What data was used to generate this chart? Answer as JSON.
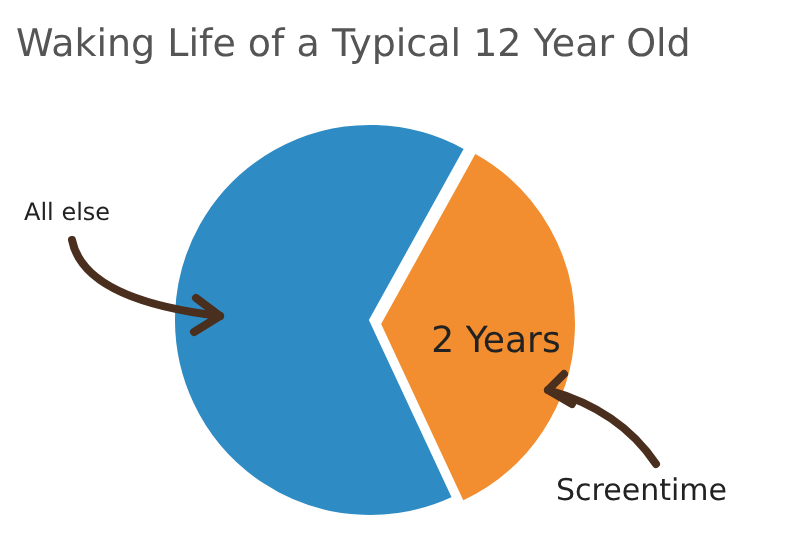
{
  "chart_data": {
    "type": "pie",
    "title": "Waking Life of a Typical 12 Year Old",
    "categories": [
      "All else",
      "Screentime"
    ],
    "values": [
      65,
      35
    ],
    "colors": [
      "#2e8bc4",
      "#f28e2f"
    ],
    "annotations": [
      "2 Years"
    ],
    "legend": false
  }
}
